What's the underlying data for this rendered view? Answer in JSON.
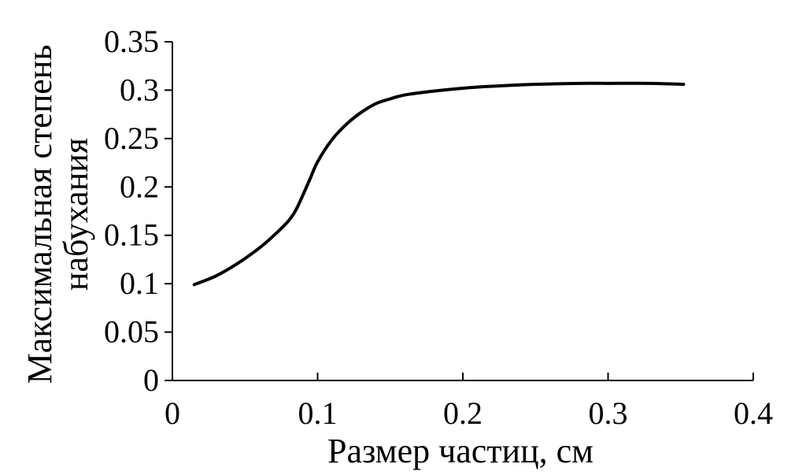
{
  "chart_data": {
    "type": "line",
    "xlabel": "Размер частиц, см",
    "ylabel_lines": [
      "Максимальная степень",
      "набухания"
    ],
    "xlim": [
      0,
      0.4
    ],
    "ylim": [
      0,
      0.35
    ],
    "x_ticks": [
      0,
      0.1,
      0.2,
      0.3,
      0.4
    ],
    "x_tick_labels": [
      "0",
      "0.1",
      "0.2",
      "0.3",
      "0.4"
    ],
    "y_ticks": [
      0,
      0.05,
      0.1,
      0.15,
      0.2,
      0.25,
      0.3,
      0.35
    ],
    "y_tick_labels": [
      "0",
      "0.05",
      "0.1",
      "0.15",
      "0.2",
      "0.25",
      "0.3",
      "0.35"
    ],
    "grid": false,
    "series": [
      {
        "color": "#000000",
        "x": [
          0.015,
          0.03,
          0.045,
          0.06,
          0.07,
          0.08,
          0.085,
          0.09,
          0.095,
          0.1,
          0.11,
          0.12,
          0.13,
          0.14,
          0.15,
          0.16,
          0.18,
          0.2,
          0.22,
          0.25,
          0.28,
          0.3,
          0.33,
          0.352
        ],
        "y": [
          0.099,
          0.108,
          0.121,
          0.137,
          0.15,
          0.165,
          0.176,
          0.192,
          0.209,
          0.226,
          0.249,
          0.265,
          0.277,
          0.286,
          0.291,
          0.295,
          0.299,
          0.302,
          0.304,
          0.306,
          0.307,
          0.307,
          0.307,
          0.306
        ]
      }
    ]
  }
}
